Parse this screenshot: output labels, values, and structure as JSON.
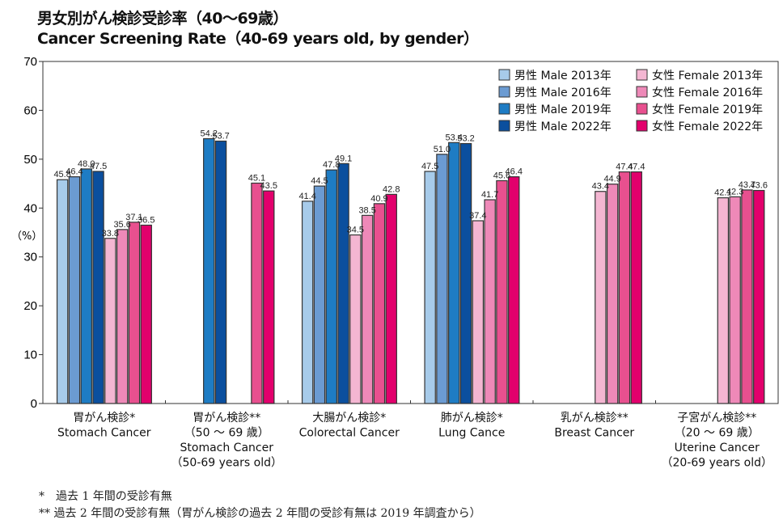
{
  "chart_data": {
    "type": "bar",
    "title": "男女別がん検診受診率（40〜69歳）",
    "subtitle": "Cancer Screening Rate（40-69 years old, by gender）",
    "ylabel": "（%）",
    "xlabel": "",
    "ylim": [
      0,
      70
    ],
    "yticks": [
      0,
      10,
      20,
      30,
      40,
      50,
      60,
      70
    ],
    "grid": false,
    "legend_position": "top-right",
    "categories": [
      {
        "lines": [
          "胃がん検診*",
          "Stomach Cancer"
        ]
      },
      {
        "lines": [
          "胃がん検診**",
          "（50 〜 69 歳）",
          "Stomach Cancer",
          "（50-69 years old）"
        ]
      },
      {
        "lines": [
          "大腸がん検診*",
          "Colorectal Cancer"
        ]
      },
      {
        "lines": [
          "肺がん検診*",
          "Lung Cance"
        ]
      },
      {
        "lines": [
          "乳がん検診**",
          "Breast Cancer"
        ]
      },
      {
        "lines": [
          "子宮がん検診**",
          "（20 〜 69 歳）",
          "Uterine Cancer",
          "（20-69 years old）"
        ]
      }
    ],
    "series": [
      {
        "name": "男性 Male 2013年",
        "color": "#a7cbea",
        "values": [
          45.8,
          null,
          41.4,
          47.5,
          null,
          null
        ]
      },
      {
        "name": "男性 Male 2016年",
        "color": "#6b9bd2",
        "values": [
          46.4,
          null,
          44.5,
          51.0,
          null,
          null
        ]
      },
      {
        "name": "男性 Male 2019年",
        "color": "#1e7cc4",
        "values": [
          48.0,
          54.2,
          47.8,
          53.4,
          null,
          null
        ]
      },
      {
        "name": "男性 Male 2022年",
        "color": "#0b4f9e",
        "values": [
          47.5,
          53.7,
          49.1,
          53.2,
          null,
          null
        ]
      },
      {
        "name": "女性 Female 2013年",
        "color": "#f4b6d2",
        "values": [
          33.8,
          null,
          34.5,
          37.4,
          43.4,
          42.1
        ]
      },
      {
        "name": "女性 Female 2016年",
        "color": "#ee89b8",
        "values": [
          35.6,
          null,
          38.5,
          41.7,
          44.9,
          42.3
        ]
      },
      {
        "name": "女性 Female 2019年",
        "color": "#e8508f",
        "values": [
          37.1,
          45.1,
          40.9,
          45.6,
          47.4,
          43.7
        ]
      },
      {
        "name": "女性 Female 2022年",
        "color": "#e2006c",
        "values": [
          36.5,
          43.5,
          42.8,
          46.4,
          47.4,
          43.6
        ]
      }
    ]
  },
  "footnotes": [
    "*　過去 1 年間の受診有無",
    "**  過去 2 年間の受診有無（胃がん検診の過去 2 年間の受診有無は 2019 年調査から）"
  ]
}
